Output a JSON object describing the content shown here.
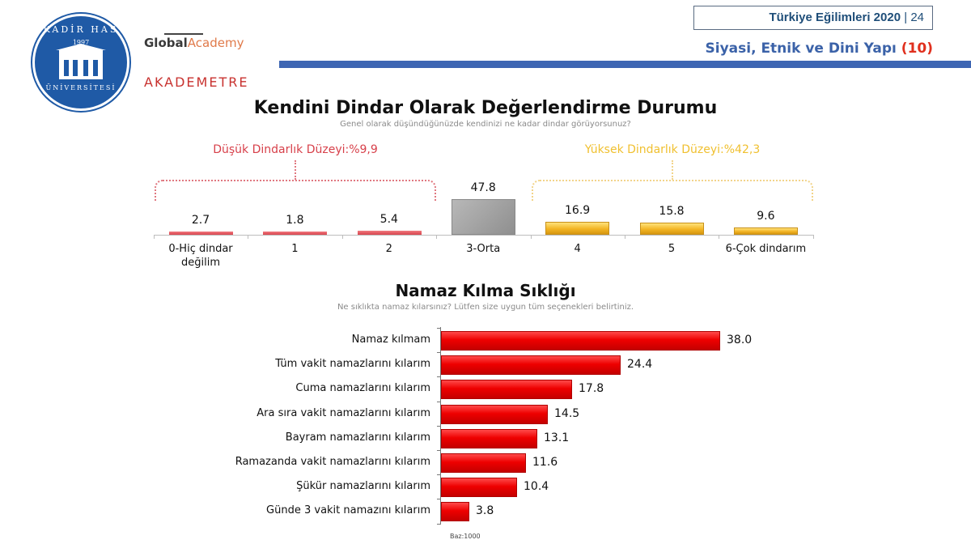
{
  "header": {
    "logo_kadir_has": {
      "top_text": "KADİR HAS",
      "year": "1997",
      "bottom_text": "ÜNİVERSİTESİ"
    },
    "logo_global_academy": {
      "bold": "Global",
      "light": "Academy"
    },
    "logo_akademetre": "AKADEMETRE",
    "report_title": "Türkiye Eğilimleri 2020",
    "separator": "|",
    "page_number": "24",
    "section_title": "Siyasi, Etnik ve Dini Yapı",
    "section_number": "(10)",
    "colors": {
      "accent_blue": "#3e66b3",
      "section_text": "#3b62a8",
      "section_number": "#e0301e"
    }
  },
  "chart_data": [
    {
      "type": "bar",
      "title": "Kendini Dindar Olarak Değerlendirme Durumu",
      "subtitle": "Genel olarak düşündüğünüzde kendinizi ne kadar dindar görüyorsunuz?",
      "categories": [
        "0-Hiç dindar değilim",
        "1",
        "2",
        "3-Orta",
        "4",
        "5",
        "6-Çok dindarım"
      ],
      "values": [
        2.7,
        1.8,
        5.4,
        47.8,
        16.9,
        15.8,
        9.6
      ],
      "value_labels": [
        "2.7",
        "1.8",
        "5.4",
        "47.8",
        "16.9",
        "15.8",
        "9.6"
      ],
      "bar_colors": [
        "#d8434d",
        "#d8434d",
        "#d8434d",
        "#9a9a9a",
        "#f3b525",
        "#f3b525",
        "#f3b525"
      ],
      "annotations": [
        {
          "text": "Düşük Dindarlık Düzeyi:%9,9",
          "covers": [
            "0-Hiç dindar değilim",
            "1",
            "2"
          ],
          "color": "#d7404a"
        },
        {
          "text": "Yüksek Dindarlık Düzeyi:%42,3",
          "covers": [
            "4",
            "5",
            "6-Çok dindarım"
          ],
          "color": "#f0c030"
        }
      ],
      "xlabel": "",
      "ylabel": "",
      "grid": false,
      "legend": "none"
    },
    {
      "type": "bar",
      "orientation": "horizontal",
      "title": "Namaz Kılma Sıklığı",
      "subtitle": "Ne sıklıkta namaz kılarsınız? Lütfen size uygun tüm seçenekleri belirtiniz.",
      "categories": [
        "Namaz kılmam",
        "Tüm vakit namazlarını kılarım",
        "Cuma namazlarını kılarım",
        "Ara sıra vakit namazlarını kılarım",
        "Bayram namazlarını kılarım",
        "Ramazanda vakit namazlarını kılarım",
        "Şükür namazlarını kılarım",
        "Günde 3 vakit namazını kılarım"
      ],
      "values": [
        38.0,
        24.4,
        17.8,
        14.5,
        13.1,
        11.6,
        10.4,
        3.8
      ],
      "value_labels": [
        "38.0",
        "24.4",
        "17.8",
        "14.5",
        "13.1",
        "11.6",
        "10.4",
        "3.8"
      ],
      "bar_color": "#ee0000",
      "footnote": "Baz:1000",
      "xlabel": "",
      "ylabel": "",
      "grid": false,
      "legend": "none"
    }
  ]
}
